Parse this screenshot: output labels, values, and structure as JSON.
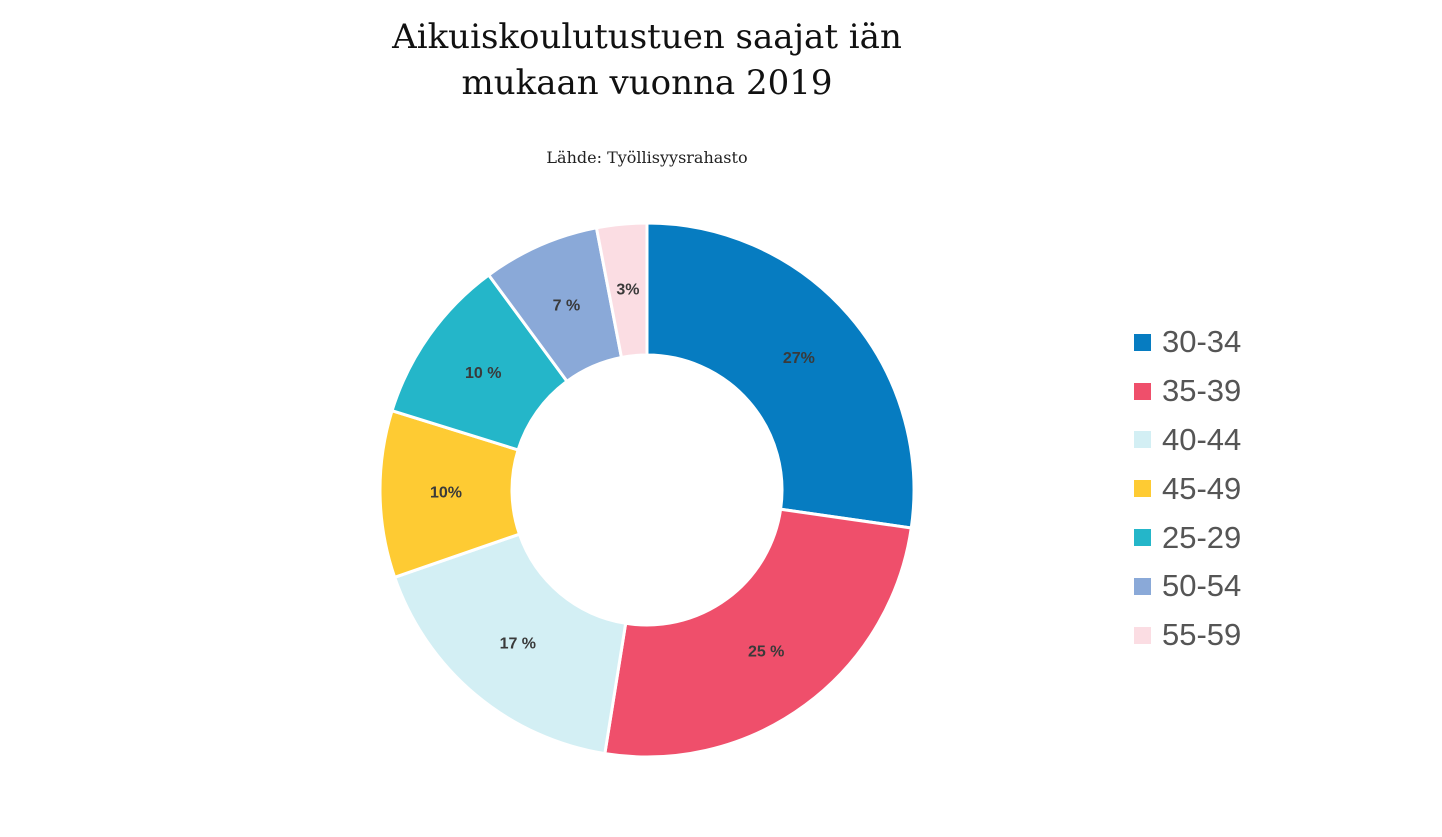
{
  "chart_data": {
    "type": "pie",
    "variant": "donut",
    "title_lines": [
      "Aikuiskoulutustuen saajat iän",
      "mukaan vuonna 2019"
    ],
    "subtitle": "Lähde: Työllisyysrahasto",
    "legend_position": "right",
    "slices": [
      {
        "label": "30-34",
        "value": 27,
        "value_label": "27%",
        "color": "#067cc1"
      },
      {
        "label": "35-39",
        "value": 25,
        "value_label": "25 %",
        "color": "#ef4f6b"
      },
      {
        "label": "40-44",
        "value": 17,
        "value_label": "17 %",
        "color": "#d3eff4"
      },
      {
        "label": "45-49",
        "value": 10,
        "value_label": "10%",
        "color": "#fecb33"
      },
      {
        "label": "25-29",
        "value": 10,
        "value_label": "10 %",
        "color": "#24b6c9"
      },
      {
        "label": "50-54",
        "value": 7,
        "value_label": "7 %",
        "color": "#8aa9d8"
      },
      {
        "label": "55-59",
        "value": 3,
        "value_label": "3%",
        "color": "#fbdde3"
      }
    ]
  }
}
